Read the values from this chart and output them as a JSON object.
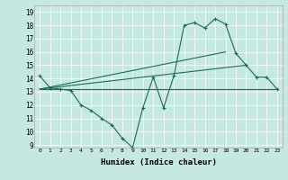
{
  "xlabel": "Humidex (Indice chaleur)",
  "xlim": [
    -0.5,
    23.5
  ],
  "ylim": [
    8.8,
    19.5
  ],
  "yticks": [
    9,
    10,
    11,
    12,
    13,
    14,
    15,
    16,
    17,
    18,
    19
  ],
  "xticks": [
    0,
    1,
    2,
    3,
    4,
    5,
    6,
    7,
    8,
    9,
    10,
    11,
    12,
    13,
    14,
    15,
    16,
    17,
    18,
    19,
    20,
    21,
    22,
    23
  ],
  "bg_color": "#c5e8e0",
  "line_color": "#1a6b5e",
  "lines": [
    {
      "x": [
        0,
        1,
        2,
        3,
        4,
        5,
        6,
        7,
        8,
        9,
        10,
        11,
        12,
        13,
        14,
        15,
        16,
        17,
        18,
        19,
        20,
        21,
        22,
        23
      ],
      "y": [
        14.2,
        13.3,
        13.2,
        13.1,
        12.0,
        11.6,
        11.0,
        10.5,
        9.5,
        8.8,
        11.8,
        14.1,
        11.8,
        14.2,
        18.0,
        18.2,
        17.8,
        18.5,
        18.1,
        15.9,
        15.0,
        14.1,
        14.1,
        13.2
      ],
      "marker": true
    },
    {
      "x": [
        0,
        23
      ],
      "y": [
        13.2,
        13.2
      ],
      "marker": false
    },
    {
      "x": [
        0,
        20
      ],
      "y": [
        13.2,
        15.0
      ],
      "marker": false
    },
    {
      "x": [
        0,
        18
      ],
      "y": [
        13.2,
        16.0
      ],
      "marker": false
    }
  ]
}
